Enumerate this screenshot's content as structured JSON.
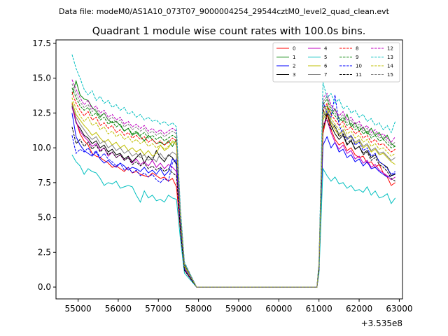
{
  "suptitle": "Data file: modeM0/AS1A10_073T07_9000004254_29544cztM0_level2_quad_clean.evt",
  "chart_data": {
    "type": "line",
    "title": "Quadrant 1 module wise count rates with 100.0s bins.",
    "xlabel": "",
    "ylabel": "",
    "x_offset_label": "+3.535e8",
    "xlim": [
      54450,
      63080
    ],
    "ylim": [
      -0.85,
      17.75
    ],
    "x_ticks": [
      55000,
      56000,
      57000,
      58000,
      59000,
      60000,
      61000,
      62000,
      63000
    ],
    "x_tick_labels": [
      "55000",
      "56000",
      "57000",
      "58000",
      "59000",
      "60000",
      "61000",
      "62000",
      "63000"
    ],
    "y_ticks": [
      0,
      2.5,
      5,
      7.5,
      10,
      12.5,
      15,
      17.5
    ],
    "y_tick_labels": [
      "0.0",
      "2.5",
      "5.0",
      "7.5",
      "10.0",
      "12.5",
      "15.0",
      "17.5"
    ],
    "x_start": 54850,
    "x_step": 100,
    "gap": {
      "zero_from": 57950,
      "zero_to": 60950
    },
    "legend": {
      "position": "top-right",
      "columns": 4
    },
    "series": [
      {
        "name": "0",
        "color": "#ff0000",
        "style": "solid",
        "left": [
          13.2,
          11.9,
          11.0,
          10.5,
          10.2,
          9.6,
          9.4,
          9.3,
          9.1,
          8.9,
          8.6,
          8.7,
          8.5,
          8.3,
          8.6,
          8.2,
          8.3,
          8.1,
          8.0,
          7.9,
          8.2,
          8.0,
          7.8,
          7.9,
          7.6,
          7.8,
          7.2,
          4.0,
          1.2
        ],
        "right": [
          1.2,
          11.0,
          12.4,
          11.3,
          10.6,
          10.2,
          10.4,
          9.8,
          10.0,
          9.5,
          9.3,
          9.4,
          8.9,
          9.0,
          8.6,
          8.8,
          8.2,
          7.9,
          7.3,
          7.5
        ]
      },
      {
        "name": "1",
        "color": "#008000",
        "style": "solid",
        "left": [
          13.8,
          14.8,
          13.8,
          13.5,
          13.4,
          12.9,
          12.6,
          12.2,
          12.5,
          12.0,
          11.8,
          11.9,
          11.6,
          11.2,
          11.4,
          10.9,
          11.1,
          10.8,
          10.5,
          10.9,
          10.6,
          10.3,
          10.4,
          10.2,
          10.5,
          10.1,
          10.6,
          4.8,
          1.6
        ],
        "right": [
          1.6,
          12.9,
          13.0,
          12.4,
          12.8,
          12.1,
          11.9,
          12.4,
          11.5,
          11.8,
          11.2,
          11.5,
          11.0,
          11.4,
          10.9,
          11.1,
          10.6,
          10.9,
          10.3,
          10.1
        ]
      },
      {
        "name": "2",
        "color": "#0000ff",
        "style": "solid",
        "left": [
          12.5,
          10.8,
          10.2,
          9.8,
          9.6,
          9.4,
          9.7,
          9.2,
          8.9,
          9.1,
          8.8,
          8.6,
          8.9,
          8.7,
          8.4,
          8.6,
          8.5,
          8.3,
          8.6,
          8.2,
          8.4,
          8.1,
          8.5,
          8.0,
          8.3,
          9.2,
          9.0,
          4.5,
          1.4
        ],
        "right": [
          1.4,
          10.2,
          10.8,
          10.0,
          10.4,
          9.7,
          9.9,
          9.3,
          9.5,
          9.0,
          9.2,
          8.7,
          9.0,
          8.5,
          8.6,
          8.3,
          8.1,
          7.9,
          8.0,
          8.2
        ]
      },
      {
        "name": "3",
        "color": "#000000",
        "style": "solid",
        "left": [
          13.0,
          11.8,
          11.4,
          10.9,
          10.7,
          10.3,
          10.5,
          10.0,
          10.2,
          9.7,
          9.9,
          9.5,
          9.6,
          9.2,
          9.4,
          9.0,
          9.3,
          9.6,
          8.9,
          9.4,
          9.1,
          9.8,
          9.3,
          9.0,
          9.5,
          9.3,
          8.8,
          4.4,
          1.3
        ],
        "right": [
          1.3,
          11.3,
          12.5,
          11.6,
          11.0,
          10.6,
          10.9,
          10.2,
          10.5,
          9.9,
          10.1,
          9.6,
          9.8,
          9.3,
          9.5,
          9.0,
          8.8,
          8.6,
          8.0,
          8.1
        ]
      },
      {
        "name": "4",
        "color": "#bf00bf",
        "style": "solid",
        "left": [
          12.9,
          11.9,
          11.2,
          10.8,
          10.5,
          10.1,
          10.3,
          9.8,
          10.0,
          9.4,
          9.7,
          9.3,
          9.5,
          9.1,
          9.3,
          8.9,
          9.2,
          8.8,
          9.0,
          8.7,
          9.1,
          8.6,
          8.9,
          8.5,
          8.8,
          8.6,
          8.3,
          4.3,
          1.3
        ],
        "right": [
          1.3,
          11.7,
          12.0,
          11.1,
          10.4,
          9.9,
          10.2,
          9.6,
          9.8,
          9.2,
          9.4,
          8.9,
          9.1,
          8.6,
          8.8,
          8.4,
          8.2,
          8.0,
          7.7,
          7.9
        ]
      },
      {
        "name": "5",
        "color": "#00bfbf",
        "style": "solid",
        "left": [
          9.5,
          9.0,
          8.7,
          8.1,
          8.5,
          8.3,
          8.2,
          7.8,
          7.3,
          7.5,
          7.4,
          7.6,
          7.1,
          7.2,
          7.3,
          7.2,
          6.6,
          6.1,
          6.9,
          6.4,
          6.6,
          6.2,
          6.3,
          6.1,
          6.6,
          6.4,
          6.3,
          3.4,
          1.0
        ],
        "right": [
          1.0,
          8.5,
          8.0,
          7.6,
          7.9,
          7.4,
          7.5,
          7.1,
          7.3,
          6.9,
          7.0,
          6.8,
          7.2,
          6.6,
          6.9,
          6.4,
          6.5,
          6.7,
          6.0,
          6.4
        ]
      },
      {
        "name": "6",
        "color": "#bfbf00",
        "style": "solid",
        "left": [
          13.3,
          12.4,
          12.0,
          11.6,
          11.3,
          10.9,
          11.1,
          10.7,
          10.4,
          10.6,
          10.2,
          10.4,
          10.0,
          10.2,
          9.8,
          10.0,
          9.7,
          9.9,
          9.5,
          9.8,
          9.4,
          9.6,
          10.2,
          9.8,
          10.0,
          10.5,
          10.3,
          4.9,
          1.5
        ],
        "right": [
          1.5,
          12.0,
          12.6,
          11.8,
          11.3,
          10.9,
          11.2,
          10.6,
          10.8,
          10.3,
          10.5,
          10.0,
          10.2,
          9.7,
          9.9,
          9.5,
          9.6,
          9.3,
          9.0,
          8.8
        ]
      },
      {
        "name": "7",
        "color": "#808080",
        "style": "solid",
        "left": [
          13.1,
          12.2,
          11.7,
          11.3,
          10.9,
          10.6,
          10.8,
          10.3,
          10.5,
          10.0,
          10.2,
          9.8,
          10.0,
          9.6,
          9.8,
          9.4,
          9.6,
          9.3,
          9.5,
          9.1,
          9.3,
          9.0,
          9.6,
          9.2,
          9.4,
          9.7,
          9.5,
          4.7,
          1.4
        ],
        "right": [
          1.4,
          12.2,
          12.8,
          11.9,
          11.5,
          11.0,
          11.3,
          10.7,
          10.9,
          10.4,
          10.6,
          10.1,
          10.3,
          9.8,
          10.0,
          9.6,
          9.7,
          9.4,
          9.1,
          9.3
        ]
      },
      {
        "name": "8",
        "color": "#ff0000",
        "style": "dashed",
        "left": [
          14.0,
          13.2,
          12.7,
          12.3,
          12.6,
          12.0,
          12.2,
          11.6,
          11.8,
          11.4,
          11.6,
          11.1,
          11.3,
          10.9,
          11.1,
          10.7,
          10.9,
          10.6,
          10.8,
          10.4,
          10.6,
          10.3,
          10.5,
          10.2,
          10.4,
          10.7,
          10.5,
          5.0,
          1.6
        ],
        "right": [
          1.6,
          12.6,
          13.2,
          12.4,
          12.0,
          11.6,
          11.9,
          11.3,
          11.5,
          11.0,
          11.2,
          10.7,
          10.9,
          10.4,
          10.6,
          10.2,
          10.3,
          10.0,
          9.7,
          9.9
        ]
      },
      {
        "name": "9",
        "color": "#008000",
        "style": "dashed",
        "left": [
          14.3,
          13.6,
          13.0,
          12.7,
          12.9,
          12.3,
          12.5,
          12.0,
          12.2,
          11.7,
          11.9,
          11.5,
          11.7,
          11.2,
          11.4,
          11.0,
          11.2,
          10.9,
          11.1,
          10.7,
          10.9,
          10.6,
          10.8,
          10.5,
          10.7,
          10.9,
          10.7,
          5.1,
          1.6
        ],
        "right": [
          1.6,
          13.1,
          13.5,
          12.7,
          12.3,
          11.9,
          12.2,
          11.6,
          11.8,
          11.3,
          11.5,
          11.0,
          11.2,
          10.7,
          10.9,
          10.5,
          10.6,
          10.3,
          10.0,
          10.1
        ]
      },
      {
        "name": "10",
        "color": "#0000ff",
        "style": "dashed",
        "left": [
          10.9,
          9.6,
          9.9,
          9.7,
          10.0,
          9.5,
          9.8,
          9.3,
          9.6,
          9.2,
          9.0,
          8.7,
          8.9,
          8.4,
          8.6,
          8.2,
          8.4,
          8.0,
          8.2,
          7.9,
          8.1,
          7.7,
          7.5,
          7.8,
          7.6,
          8.9,
          9.2,
          4.4,
          1.3
        ],
        "right": [
          1.3,
          13.3,
          12.5,
          12.2,
          13.8,
          11.6,
          11.0,
          10.6,
          10.9,
          10.2,
          10.4,
          9.8,
          10.0,
          9.4,
          9.6,
          9.0,
          8.8,
          8.5,
          8.1,
          8.3
        ]
      },
      {
        "name": "11",
        "color": "#000000",
        "style": "dashed",
        "left": [
          11.5,
          10.3,
          10.6,
          10.1,
          10.4,
          9.9,
          10.2,
          9.7,
          10.0,
          9.5,
          9.7,
          9.3,
          9.5,
          9.1,
          9.3,
          8.8,
          9.0,
          8.7,
          8.9,
          8.5,
          8.7,
          8.4,
          8.6,
          8.3,
          8.5,
          8.2,
          8.0,
          4.0,
          1.2
        ],
        "right": [
          1.2,
          12.8,
          12.0,
          11.3,
          11.6,
          10.8,
          11.0,
          10.3,
          10.6,
          9.9,
          10.1,
          9.5,
          9.7,
          9.1,
          9.3,
          8.8,
          8.6,
          8.3,
          7.8,
          7.6
        ]
      },
      {
        "name": "12",
        "color": "#bf00bf",
        "style": "dashed",
        "left": [
          14.9,
          14.2,
          13.6,
          13.1,
          13.4,
          12.8,
          13.0,
          12.5,
          12.7,
          12.2,
          12.4,
          12.0,
          12.2,
          11.7,
          11.9,
          11.5,
          11.7,
          11.4,
          11.6,
          11.2,
          11.4,
          11.1,
          11.3,
          11.0,
          11.2,
          11.4,
          11.2,
          5.4,
          1.7
        ],
        "right": [
          1.7,
          13.6,
          13.9,
          13.1,
          12.7,
          12.3,
          12.6,
          12.0,
          12.2,
          11.7,
          11.9,
          11.4,
          11.6,
          11.1,
          11.3,
          10.9,
          11.0,
          10.7,
          10.4,
          10.8
        ]
      },
      {
        "name": "13",
        "color": "#00bfbf",
        "style": "dashed",
        "left": [
          16.7,
          15.7,
          15.0,
          14.2,
          13.8,
          14.1,
          13.4,
          13.7,
          13.2,
          13.4,
          12.9,
          13.1,
          12.7,
          12.9,
          12.4,
          12.6,
          12.2,
          12.4,
          12.0,
          12.2,
          11.9,
          12.0,
          11.7,
          11.9,
          11.6,
          11.8,
          11.5,
          5.6,
          1.8
        ],
        "right": [
          1.8,
          14.7,
          13.6,
          13.9,
          13.2,
          13.5,
          12.8,
          13.0,
          12.5,
          12.7,
          12.2,
          12.4,
          11.9,
          12.1,
          11.6,
          11.8,
          11.3,
          11.6,
          11.1,
          11.9
        ]
      },
      {
        "name": "14",
        "color": "#bfbf00",
        "style": "dashed",
        "left": [
          13.6,
          12.8,
          12.3,
          11.9,
          12.2,
          11.6,
          11.8,
          11.3,
          11.5,
          11.0,
          11.2,
          10.8,
          11.0,
          10.6,
          10.8,
          10.4,
          10.6,
          10.3,
          10.5,
          10.1,
          10.3,
          10.0,
          10.2,
          9.9,
          10.1,
          10.4,
          10.2,
          4.9,
          1.5
        ],
        "right": [
          1.5,
          12.4,
          12.9,
          12.1,
          11.7,
          11.3,
          11.6,
          11.0,
          11.2,
          10.7,
          10.9,
          10.4,
          10.6,
          10.1,
          10.3,
          9.9,
          10.0,
          9.7,
          9.4,
          9.6
        ]
      },
      {
        "name": "15",
        "color": "#808080",
        "style": "dashed",
        "left": [
          14.6,
          13.9,
          13.3,
          12.9,
          13.1,
          12.6,
          12.8,
          12.3,
          12.5,
          12.0,
          12.2,
          11.8,
          12.0,
          11.5,
          11.7,
          11.3,
          11.5,
          11.2,
          11.4,
          11.0,
          11.2,
          10.9,
          11.1,
          10.8,
          11.0,
          11.2,
          11.0,
          5.3,
          1.7
        ],
        "right": [
          1.7,
          13.3,
          13.7,
          12.9,
          12.5,
          12.1,
          12.4,
          11.8,
          12.0,
          11.5,
          11.7,
          11.2,
          11.4,
          10.9,
          11.1,
          10.7,
          10.8,
          10.5,
          10.2,
          10.4
        ]
      }
    ]
  }
}
